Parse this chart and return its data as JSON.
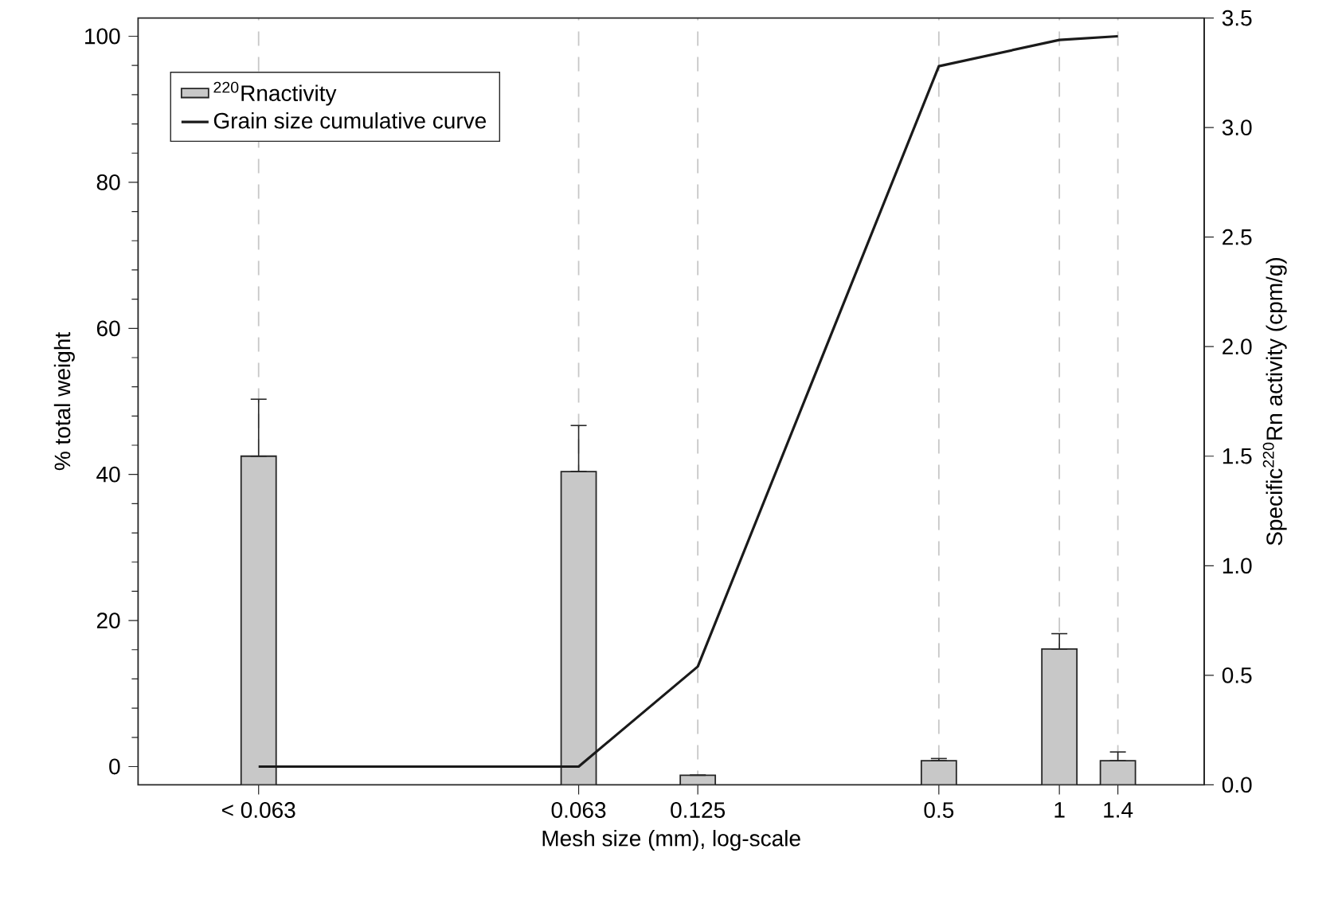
{
  "chart_data": {
    "type": "bar",
    "xlabel": "Mesh size (mm), log-scale",
    "ylabel": "% total weight",
    "y2label": "Specific$^{220}$Rn activity (cpm/g)",
    "x": [
      0.01,
      0.063,
      0.125,
      0.5,
      1,
      1.4
    ],
    "series": [
      {
        "name": "$^{220}$Rnactivity",
        "axis": "y2",
        "color": "#c8c8c8",
        "values": [
          1.5,
          1.43,
          0.044,
          0.11,
          0.62,
          0.11
        ],
        "errors": [
          [
            1.5,
            1.76
          ],
          [
            1.43,
            1.64
          ],
          null,
          [
            0.11,
            0.12
          ],
          [
            0.62,
            0.69
          ],
          [
            0.11,
            0.15
          ]
        ]
      },
      {
        "name": "Grain size cumulative curve",
        "type": "line",
        "axis": "y",
        "color": "#1a1a1a",
        "values": [
          0,
          0,
          13.7,
          95.9,
          99.5,
          100
        ]
      }
    ],
    "xlim": [
      0.005,
      2.3
    ],
    "ylim": [
      -2.5,
      102.5
    ],
    "y2lim": [
      0,
      3.5
    ],
    "xticks": [
      {
        "value": 0.01,
        "label": "< 0.063"
      },
      0.063,
      0.125,
      0.5,
      1,
      1.4
    ],
    "yticks": [
      0,
      20,
      40,
      60,
      80,
      100
    ],
    "y2ticks": [
      {
        "value": 0,
        "label": "0.0"
      },
      0.5,
      {
        "value": 1,
        "label": "1.0"
      },
      1.5,
      {
        "value": 2,
        "label": "2.0"
      },
      2.5,
      {
        "value": 3,
        "label": "3.0"
      },
      3.5
    ],
    "log": "x",
    "grid": "x",
    "legend": "top left"
  }
}
